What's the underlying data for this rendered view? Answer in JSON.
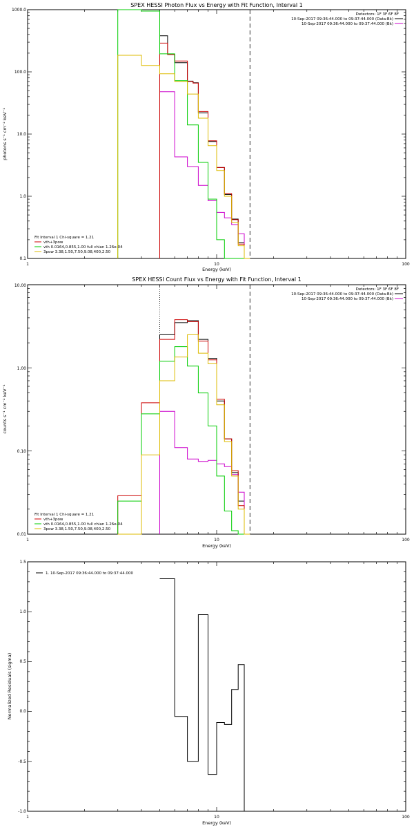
{
  "chart_data": [
    {
      "type": "line",
      "title": "SPEX HESSI Photon Flux vs Energy with Fit Function, Interval 1",
      "xlabel": "Energy (keV)",
      "ylabel": "photons s⁻¹ cm⁻² keV⁻¹",
      "xscale": "log",
      "yscale": "log",
      "xlim": [
        1,
        100
      ],
      "ylim": [
        0.1,
        1000
      ],
      "x_ticks": [
        "1",
        "10",
        "100"
      ],
      "y_ticks": [
        "0.1",
        "1.0",
        "10.0",
        "100.0",
        "1000.0"
      ],
      "bin_edges": [
        3.0,
        3.5,
        4.0,
        4.5,
        5.0,
        5.5,
        6.0,
        6.5,
        7.0,
        7.5,
        8.0,
        8.5,
        9.0,
        9.5,
        10.0,
        10.5,
        11.0,
        11.5,
        12.0,
        12.5,
        13.0,
        13.5,
        14.0,
        14.5,
        15.0
      ],
      "vlines": [
        {
          "x": 5.0,
          "style": "dotted"
        },
        {
          "x": 15.0,
          "style": "dashed"
        }
      ],
      "legend_top_right": {
        "header": "Detectors: 1F 3F 6F 8F",
        "entries": [
          {
            "label": "10-Sep-2017 09:36:44.000 to 09:37:44.000 (Data-Bk)",
            "color": "#000000"
          },
          {
            "label": "10-Sep-2017 09:36:44.000 to 09:37:44.000 (Bk)",
            "color": "#cc00cc"
          }
        ]
      },
      "legend_bottom_left": {
        "header": "Fit Interval 1   Chi-square = 1.21",
        "entries": [
          {
            "label": "vth+3pow",
            "color": "#cc0000"
          },
          {
            "label": "vth 0.0164,0.855,1.00  full chian 1.26e-04",
            "color": "#00cc00"
          },
          {
            "label": "3pow 3.38,1.50,7.50,9.08,400,2.50",
            "color": "#ddbb00"
          }
        ]
      },
      "series": [
        {
          "name": "Data-Bk",
          "color": "#000000",
          "x_start": 5.0,
          "values": [
            380,
            190,
            140,
            140,
            71,
            67,
            22,
            22,
            7.6,
            7.6,
            2.9,
            2.9,
            1.07,
            1.07,
            0.43,
            0.43,
            0.18,
            0.18,
            0.1,
            0.1
          ]
        },
        {
          "name": "Bk",
          "color": "#cc00cc",
          "x_start": 5.0,
          "values": [
            48,
            48,
            4.3,
            4.3,
            3.0,
            3.0,
            1.5,
            1.5,
            0.85,
            0.85,
            0.55,
            0.55,
            0.45,
            0.45,
            0.35,
            0.35,
            0.25,
            0.25,
            0.1,
            0.1
          ]
        },
        {
          "name": "vth+3pow",
          "color": "#cc0000",
          "x_start": 5.0,
          "values": [
            290,
            190,
            150,
            150,
            70,
            66,
            23,
            23,
            7.8,
            7.8,
            2.9,
            2.9,
            1.1,
            1.1,
            0.42,
            0.42,
            0.17,
            0.17,
            0.1,
            0.1
          ]
        },
        {
          "name": "vth",
          "color": "#00cc00",
          "x_start": 3.0,
          "values": [
            1000,
            1000,
            950,
            950,
            195,
            195,
            72,
            72,
            14,
            14,
            3.5,
            3.5,
            0.9,
            0.9,
            0.2,
            0.2,
            0.1,
            0.1,
            0.1,
            0.1,
            0.1,
            0.1,
            0.1,
            0.1
          ]
        },
        {
          "name": "3pow",
          "color": "#ddbb00",
          "x_start": 3.0,
          "values": [
            185,
            185,
            127,
            127,
            93,
            93,
            70,
            70,
            44,
            44,
            18,
            18,
            6.5,
            6.5,
            2.6,
            2.6,
            1.0,
            1.0,
            0.38,
            0.38,
            0.16,
            0.16,
            0.1,
            0.1
          ]
        }
      ]
    },
    {
      "type": "line",
      "title": "SPEX HESSI Count Flux vs Energy with Fit Function, Interval 1",
      "xlabel": "Energy (keV)",
      "ylabel": "counts s⁻¹ cm⁻² keV⁻¹",
      "xscale": "log",
      "yscale": "log",
      "xlim": [
        1,
        100
      ],
      "ylim": [
        0.01,
        10
      ],
      "x_ticks": [
        "1",
        "10",
        "100"
      ],
      "y_ticks": [
        "0.01",
        "0.10",
        "1.00",
        "10.00"
      ],
      "bin_edges": [
        3.0,
        4.0,
        5.0,
        5.5,
        6.0,
        6.5,
        7.0,
        7.5,
        8.0,
        8.5,
        9.0,
        9.5,
        10.0,
        10.5,
        11.0,
        11.5,
        12.0,
        12.5,
        13.0,
        13.5,
        14.0,
        14.5,
        15.0
      ],
      "vlines": [
        {
          "x": 5.0,
          "style": "dotted"
        },
        {
          "x": 15.0,
          "style": "dashed"
        }
      ],
      "legend_top_right": {
        "header": "Detectors: 1F 3F 6F 8F",
        "entries": [
          {
            "label": "10-Sep-2017 09:36:44.000 to 09:37:44.000 (Data-Bk)",
            "color": "#000000"
          },
          {
            "label": "10-Sep-2017 09:36:44.000 to 09:37:44.000 (Bk)",
            "color": "#cc00cc"
          }
        ]
      },
      "legend_bottom_left": {
        "header": "Fit Interval 1   Chi-square = 1.21",
        "entries": [
          {
            "label": "vth+3pow",
            "color": "#cc0000"
          },
          {
            "label": "vth 0.0164,0.855,1.00  full chian 1.26e-04",
            "color": "#00cc00"
          },
          {
            "label": "3pow 3.38,1.50,7.50,9.08,400,2.50",
            "color": "#ddbb00"
          }
        ]
      },
      "series": [
        {
          "name": "Data-Bk",
          "color": "#000000",
          "x_start": 5.0,
          "values": [
            2.5,
            2.5,
            3.5,
            3.5,
            3.7,
            3.7,
            2.2,
            2.2,
            1.3,
            1.3,
            0.4,
            0.4,
            0.14,
            0.14,
            0.055,
            0.055,
            0.025,
            0.025,
            0.01,
            0.01
          ]
        },
        {
          "name": "Bk",
          "color": "#cc00cc",
          "x_start": 5.0,
          "values": [
            0.3,
            0.3,
            0.11,
            0.11,
            0.08,
            0.08,
            0.075,
            0.075,
            0.077,
            0.077,
            0.07,
            0.07,
            0.065,
            0.065,
            0.052,
            0.052,
            0.032,
            0.032,
            0.01,
            0.01
          ]
        },
        {
          "name": "vth+3pow",
          "color": "#cc0000",
          "x_start": 3.0,
          "values": [
            0.029,
            0.38,
            2.2,
            2.2,
            3.8,
            3.8,
            3.6,
            3.6,
            2.1,
            2.1,
            1.25,
            1.25,
            0.42,
            0.42,
            0.14,
            0.14,
            0.058,
            0.058,
            0.022,
            0.022,
            0.01,
            0.01
          ]
        },
        {
          "name": "vth",
          "color": "#00cc00",
          "x_start": 3.0,
          "values": [
            0.025,
            0.28,
            1.2,
            1.2,
            1.8,
            1.8,
            1.05,
            1.05,
            0.5,
            0.5,
            0.2,
            0.2,
            0.05,
            0.05,
            0.019,
            0.019,
            0.011,
            0.011,
            0.01,
            0.01,
            0.01,
            0.01
          ]
        },
        {
          "name": "3pow",
          "color": "#ddbb00",
          "x_start": 3.0,
          "values": [
            0.01,
            0.09,
            0.7,
            0.7,
            1.35,
            1.35,
            2.5,
            2.5,
            1.5,
            1.5,
            1.12,
            1.12,
            0.36,
            0.36,
            0.13,
            0.13,
            0.05,
            0.05,
            0.02,
            0.02,
            0.01,
            0.01
          ]
        }
      ]
    },
    {
      "type": "line",
      "title": "",
      "xlabel": "Energy (keV)",
      "ylabel": "Normalized Residuals (sigma)",
      "xscale": "log",
      "yscale": "linear",
      "xlim": [
        1,
        100
      ],
      "ylim": [
        -1.0,
        1.5
      ],
      "x_ticks": [
        "1",
        "10",
        "100"
      ],
      "y_ticks": [
        "-1.0",
        "-0.5",
        "0.0",
        "0.5",
        "1.0",
        "1.5"
      ],
      "legend": {
        "entries": [
          {
            "label": "1. 10-Sep-2017 09:36:44.000 to 09:37:44.000",
            "color": "#000000"
          }
        ]
      },
      "series": [
        {
          "name": "1. 10-Sep-2017 09:36:44.000 to 09:37:44.000",
          "color": "#000000",
          "bin_edges": [
            5.0,
            6.0,
            7.0,
            8.0,
            9.0,
            10.0,
            11.0,
            12.0,
            13.0,
            14.0,
            15.0
          ],
          "values": [
            1.33,
            -0.05,
            -0.5,
            0.97,
            -0.63,
            -0.11,
            -0.13,
            0.22,
            0.47,
            -1.0
          ]
        }
      ]
    }
  ]
}
